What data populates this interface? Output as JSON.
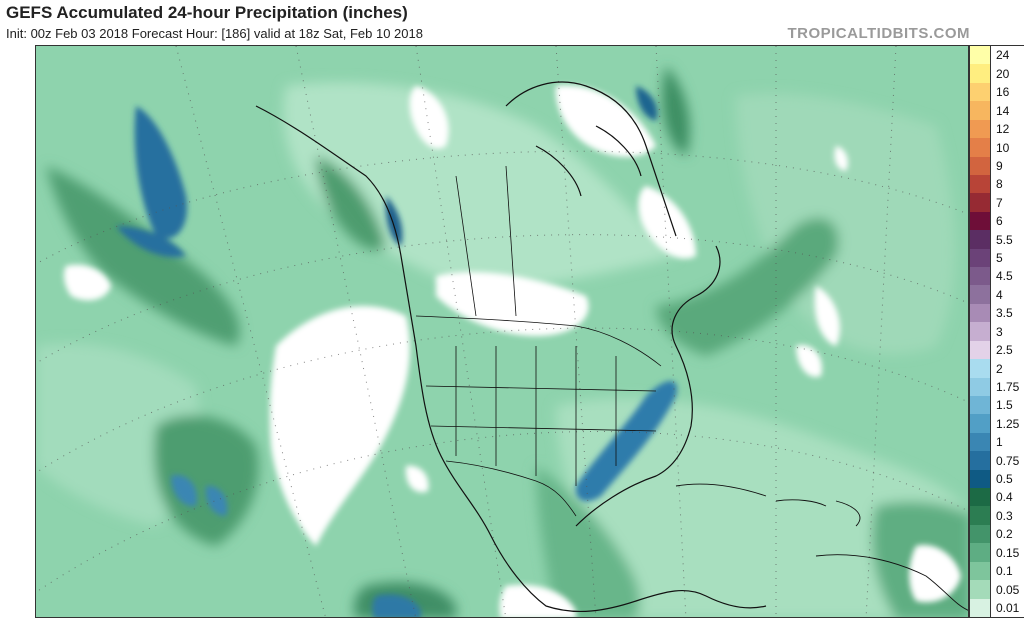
{
  "header": {
    "title": "GEFS Accumulated 24-hour Precipitation (inches)",
    "subtitle": "Init: 00z Feb 03 2018   Forecast Hour: [186]   valid at 18z Sat, Feb 10 2018",
    "brand": "TROPICALTIDBITS.COM"
  },
  "legend": {
    "levels": [
      {
        "label": "24",
        "color": "#ffffa8"
      },
      {
        "label": "20",
        "color": "#ffee80"
      },
      {
        "label": "16",
        "color": "#fdd070"
      },
      {
        "label": "14",
        "color": "#f7b65f"
      },
      {
        "label": "12",
        "color": "#f09a52"
      },
      {
        "label": "10",
        "color": "#e47f48"
      },
      {
        "label": "9",
        "color": "#d2643f"
      },
      {
        "label": "8",
        "color": "#b84437"
      },
      {
        "label": "7",
        "color": "#962a33"
      },
      {
        "label": "6",
        "color": "#6e0e38"
      },
      {
        "label": "5.5",
        "color": "#5b2e63"
      },
      {
        "label": "5",
        "color": "#6b4278"
      },
      {
        "label": "4.5",
        "color": "#7c5a8b"
      },
      {
        "label": "4",
        "color": "#8d719d"
      },
      {
        "label": "3.5",
        "color": "#a88bb5"
      },
      {
        "label": "3",
        "color": "#c6aed0"
      },
      {
        "label": "2.5",
        "color": "#e3d2e8"
      },
      {
        "label": "2",
        "color": "#a9dcef"
      },
      {
        "label": "1.75",
        "color": "#8fcbe4"
      },
      {
        "label": "1.5",
        "color": "#6fb5d6"
      },
      {
        "label": "1.25",
        "color": "#519fc6"
      },
      {
        "label": "1",
        "color": "#3a86b3"
      },
      {
        "label": "0.75",
        "color": "#256f9f"
      },
      {
        "label": "0.5",
        "color": "#0f5a84"
      },
      {
        "label": "0.4",
        "color": "#1c6a45"
      },
      {
        "label": "0.3",
        "color": "#2c7d52"
      },
      {
        "label": "0.2",
        "color": "#43946a"
      },
      {
        "label": "0.15",
        "color": "#5ead83"
      },
      {
        "label": "0.1",
        "color": "#7ec59c"
      },
      {
        "label": "0.05",
        "color": "#a4dbb9"
      },
      {
        "label": "0.01",
        "color": "#d8f2e2"
      }
    ]
  }
}
